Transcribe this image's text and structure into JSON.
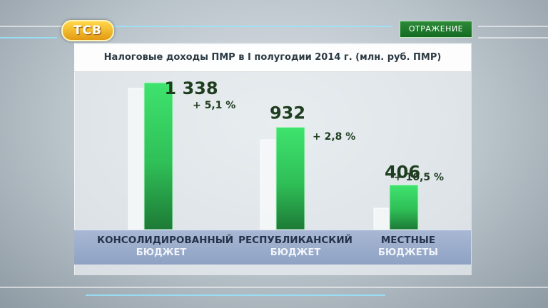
{
  "channel_logo": "ТСВ",
  "program_badge": "ОТРАЖЕНИЕ",
  "chart_data": {
    "type": "bar",
    "title": "Налоговые доходы ПМР в I полугодии 2014 г. (млн. руб. ПМР)",
    "categories": [
      {
        "line1": "КОНСОЛИДИРОВАННЫЙ",
        "line2": "БЮДЖЕТ"
      },
      {
        "line1": "РЕСПУБЛИКАНСКИЙ",
        "line2": "БЮДЖЕТ"
      },
      {
        "line1": "МЕСТНЫЕ",
        "line2": "БЮДЖЕТЫ"
      }
    ],
    "values": [
      1338,
      932,
      406
    ],
    "value_labels": [
      "1 338",
      "932",
      "406"
    ],
    "change_labels": [
      "+ 5,1 %",
      "+ 2,8 %",
      "+ 10,5 %"
    ],
    "ylim": [
      0,
      1338
    ],
    "colors": {
      "bar": "#3fdc6a",
      "bar_dark": "#1c7a35",
      "ghost": "#f5f7f8"
    }
  }
}
